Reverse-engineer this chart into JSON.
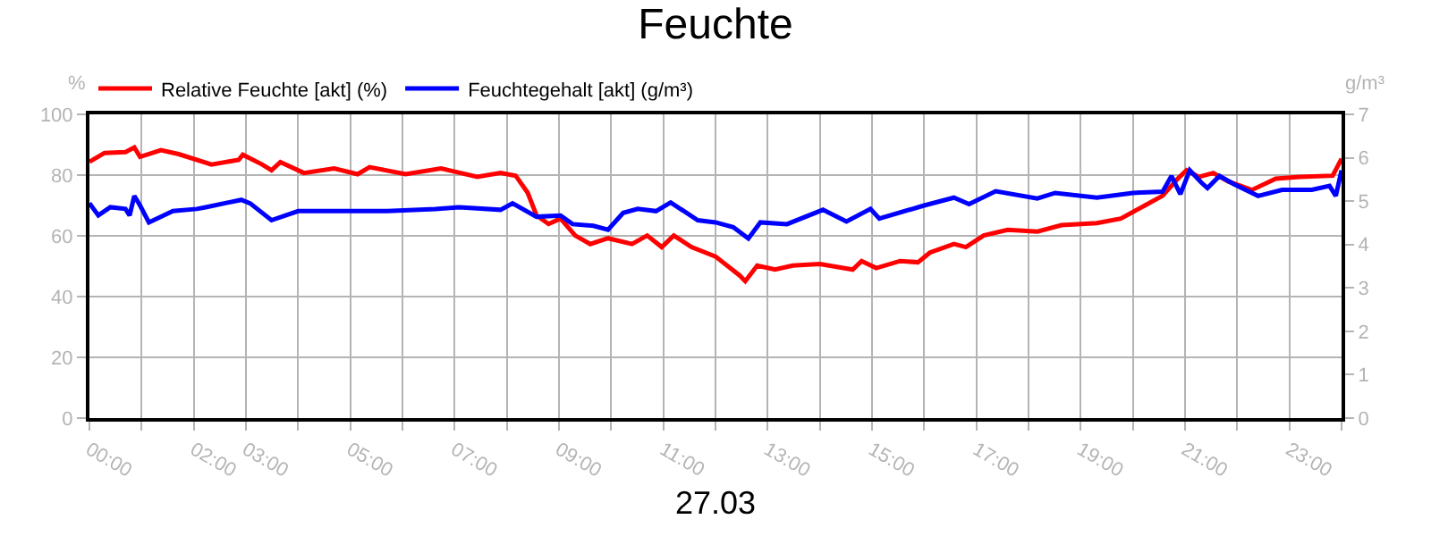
{
  "chart_data": {
    "type": "line",
    "title": "Feuchte",
    "xlabel": "27.03",
    "ylabel": "%",
    "y2label": "g/m³",
    "xlim": [
      0,
      24
    ],
    "xticks": [
      {
        "value": 0,
        "label": "00:00"
      },
      {
        "value": 1,
        "label": null
      },
      {
        "value": 2,
        "label": "02:00"
      },
      {
        "value": 3,
        "label": "03:00"
      },
      {
        "value": 4,
        "label": null
      },
      {
        "value": 5,
        "label": "05:00"
      },
      {
        "value": 6,
        "label": null
      },
      {
        "value": 7,
        "label": "07:00"
      },
      {
        "value": 8,
        "label": null
      },
      {
        "value": 9,
        "label": "09:00"
      },
      {
        "value": 10,
        "label": null
      },
      {
        "value": 11,
        "label": "11:00"
      },
      {
        "value": 12,
        "label": null
      },
      {
        "value": 13,
        "label": "13:00"
      },
      {
        "value": 14,
        "label": null
      },
      {
        "value": 15,
        "label": "15:00"
      },
      {
        "value": 16,
        "label": null
      },
      {
        "value": 17,
        "label": "17:00"
      },
      {
        "value": 18,
        "label": null
      },
      {
        "value": 19,
        "label": "19:00"
      },
      {
        "value": 20,
        "label": null
      },
      {
        "value": 21,
        "label": "21:00"
      },
      {
        "value": 22,
        "label": null
      },
      {
        "value": 23,
        "label": "23:00"
      },
      {
        "value": 24,
        "label": null
      }
    ],
    "ylim": [
      0,
      100
    ],
    "yticks": [
      0,
      20,
      40,
      60,
      80,
      100
    ],
    "y2lim": [
      0,
      7
    ],
    "y2ticks": [
      0,
      1,
      2,
      3,
      4,
      5,
      6,
      7
    ],
    "grid": true,
    "legend": "top left",
    "series": [
      {
        "name": "Relative Feuchte [akt] (%)",
        "color": "#ff0000",
        "x": [
          0,
          0.29,
          0.69,
          0.86,
          0.97,
          1.37,
          1.71,
          2.34,
          2.86,
          2.94,
          3.31,
          3.49,
          3.66,
          4.11,
          4.69,
          5.14,
          5.37,
          6.06,
          6.74,
          7.43,
          7.88,
          8.17,
          8.4,
          8.57,
          8.8,
          9.03,
          9.31,
          9.6,
          9.94,
          10.4,
          10.69,
          10.97,
          11.2,
          11.54,
          12.0,
          12.46,
          12.57,
          12.8,
          13.14,
          13.48,
          14.0,
          14.63,
          14.8,
          15.08,
          15.54,
          15.88,
          16.11,
          16.57,
          16.8,
          17.14,
          17.6,
          18.17,
          18.63,
          19.31,
          19.77,
          20.23,
          20.57,
          20.86,
          21.03,
          21.26,
          21.54,
          21.83,
          22.28,
          22.74,
          23.2,
          23.83,
          24.0
        ],
        "values": [
          84.4,
          87.3,
          87.6,
          89.1,
          86.0,
          88.2,
          86.9,
          83.5,
          85.0,
          86.7,
          83.5,
          81.6,
          84.3,
          80.7,
          82.2,
          80.3,
          82.6,
          80.3,
          82.2,
          79.4,
          80.7,
          79.8,
          74.2,
          66.7,
          63.9,
          65.7,
          60.1,
          57.3,
          59.2,
          57.3,
          60.1,
          56.3,
          60.1,
          56.3,
          53.2,
          47.0,
          45.1,
          50.2,
          48.9,
          50.2,
          50.7,
          48.9,
          51.7,
          49.4,
          51.7,
          51.3,
          54.5,
          57.3,
          56.3,
          60.1,
          62.0,
          61.4,
          63.5,
          64.2,
          65.7,
          70.0,
          73.2,
          78.8,
          81.6,
          79.4,
          80.7,
          77.9,
          75.1,
          78.8,
          79.4,
          79.8,
          85.4
        ]
      },
      {
        "name": "Feuchtegehalt [akt] (g/m³)",
        "color": "#0000ff",
        "axis": "y2",
        "x": [
          0,
          0.17,
          0.4,
          0.69,
          0.77,
          0.86,
          0.97,
          1.14,
          1.6,
          2.06,
          2.23,
          2.91,
          3.08,
          3.49,
          4.0,
          4.69,
          5.71,
          6.63,
          7.09,
          7.88,
          8.11,
          8.57,
          9.03,
          9.26,
          9.66,
          9.94,
          10.23,
          10.51,
          10.86,
          11.14,
          11.66,
          12.0,
          12.34,
          12.63,
          12.86,
          13.37,
          14.06,
          14.51,
          14.97,
          15.14,
          16.0,
          16.57,
          16.86,
          17.37,
          18.17,
          18.51,
          19.31,
          20.0,
          20.57,
          20.74,
          20.91,
          21.09,
          21.31,
          21.43,
          21.66,
          21.94,
          22.4,
          22.86,
          23.43,
          23.77,
          23.89,
          24.0
        ],
        "values": [
          4.95,
          4.67,
          4.86,
          4.82,
          4.67,
          5.12,
          4.9,
          4.51,
          4.77,
          4.82,
          4.86,
          5.03,
          4.95,
          4.56,
          4.77,
          4.77,
          4.77,
          4.82,
          4.86,
          4.8,
          4.95,
          4.64,
          4.67,
          4.47,
          4.43,
          4.34,
          4.73,
          4.82,
          4.77,
          4.97,
          4.56,
          4.51,
          4.4,
          4.14,
          4.51,
          4.47,
          4.8,
          4.53,
          4.82,
          4.6,
          4.9,
          5.08,
          4.93,
          5.23,
          5.06,
          5.19,
          5.08,
          5.19,
          5.22,
          5.58,
          5.16,
          5.71,
          5.43,
          5.3,
          5.58,
          5.39,
          5.12,
          5.26,
          5.26,
          5.35,
          5.12,
          5.71
        ]
      }
    ]
  }
}
